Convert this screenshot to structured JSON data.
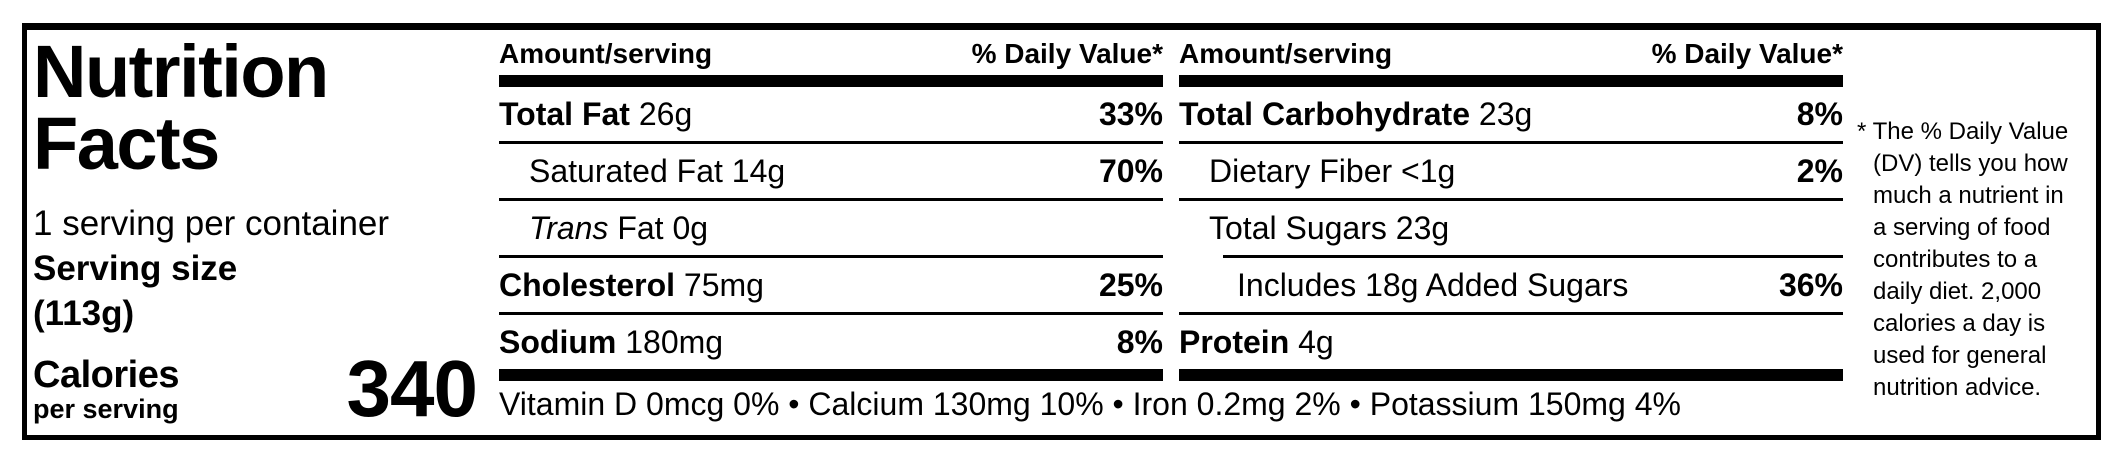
{
  "label": {
    "title_line1": "Nutrition",
    "title_line2": "Facts",
    "servings_per_container": "1 serving per container",
    "serving_size_label": "Serving size",
    "serving_size_value": "(113g)",
    "calories_label": "Calories",
    "calories_sublabel": "per serving",
    "calories_value": "340"
  },
  "columns": {
    "header_amount": "Amount/serving",
    "header_dv": "% Daily Value*",
    "col1": [
      {
        "name": "Total Fat",
        "amount": "26g",
        "dv": "33%"
      },
      {
        "name": "Saturated Fat",
        "amount": "14g",
        "dv": "70%"
      },
      {
        "name_italic": "Trans",
        "name": "Fat",
        "amount": "0g",
        "dv": ""
      },
      {
        "name": "Cholesterol",
        "amount": "75mg",
        "dv": "25%"
      },
      {
        "name": "Sodium",
        "amount": "180mg",
        "dv": "8%"
      }
    ],
    "col2": [
      {
        "name": "Total Carbohydrate",
        "amount": "23g",
        "dv": "8%"
      },
      {
        "name": "Dietary Fiber",
        "amount": "<1g",
        "dv": "2%"
      },
      {
        "name": "Total Sugars",
        "amount": "23g",
        "dv": ""
      },
      {
        "name": "Includes 18g Added Sugars",
        "amount": "",
        "dv": "36%"
      },
      {
        "name": "Protein",
        "amount": "4g",
        "dv": ""
      }
    ]
  },
  "micronutrients": "Vitamin D 0mcg 0% • Calcium 130mg 10% • Iron 0.2mg 2% • Potassium 150mg 4%",
  "footnote": "* The % Daily Value\n(DV) tells you how\nmuch a nutrient in\na serving of food\ncontributes to a\ndaily diet. 2,000\ncalories a day is\nused for general\nnutrition advice.",
  "colors": {
    "ink": "#000000",
    "background": "#ffffff"
  }
}
